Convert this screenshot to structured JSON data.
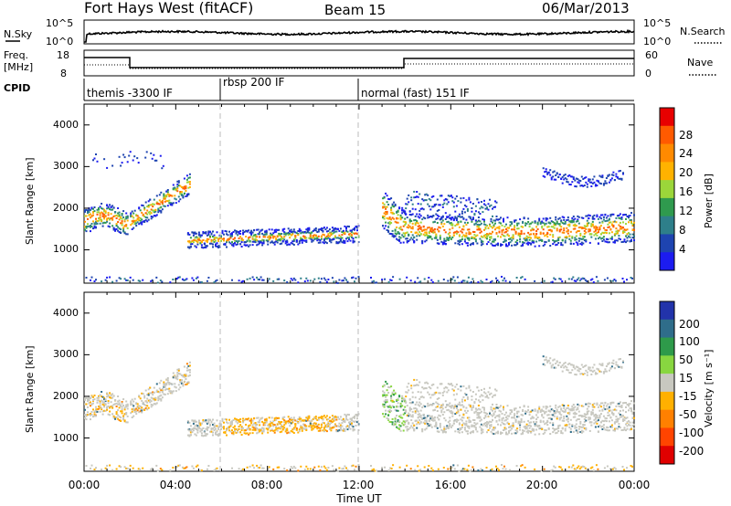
{
  "header": {
    "title": "Fort Hays West (fitACF)",
    "beam": "Beam 15",
    "date": "06/Mar/2013"
  },
  "noise_panel": {
    "left_label": "N.Sky",
    "left_ticks": [
      "10^5",
      "10^0"
    ],
    "right_label": "N.Search",
    "right_ticks": [
      "10^5",
      "10^0"
    ]
  },
  "freq_panel": {
    "left_label_line1": "Freq.",
    "left_label_line2": "[MHz]",
    "left_ticks": [
      "18",
      "8"
    ],
    "right_label": "Nave",
    "right_ticks": [
      "60",
      "0"
    ]
  },
  "cpid_panel": {
    "label": "CPID",
    "segments": [
      {
        "start": 0.0,
        "end": 6.0,
        "text": "themis -3300 IF"
      },
      {
        "start": 6.0,
        "end": 12.0,
        "text": "rbsp 200 IF"
      },
      {
        "start": 12.0,
        "end": 24.0,
        "text": "normal (fast) 151 IF"
      }
    ]
  },
  "chart_data": [
    {
      "type": "heatmap",
      "name": "power",
      "ylabel": "Slant Range [km]",
      "yticks": [
        "1000",
        "2000",
        "3000",
        "4000"
      ],
      "ylim": [
        200,
        4500
      ],
      "xlim": [
        0,
        24
      ],
      "colorbar": {
        "label": "Power [dB]",
        "ticks": [
          "4",
          "8",
          "12",
          "16",
          "20",
          "24",
          "28"
        ],
        "colors": [
          "#1c1cf0",
          "#1e44b0",
          "#2e7f8a",
          "#2f9a4e",
          "#9bd63a",
          "#ffb200",
          "#ff8a00",
          "#ff5a00",
          "#e80000"
        ]
      }
    },
    {
      "type": "heatmap",
      "name": "velocity",
      "ylabel": "Slant Range [km]",
      "yticks": [
        "1000",
        "2000",
        "3000",
        "4000"
      ],
      "ylim": [
        200,
        4500
      ],
      "xlim": [
        0,
        24
      ],
      "colorbar": {
        "label": "Velocity [m s⁻¹]",
        "ticks": [
          "200",
          "100",
          "50",
          "15",
          "-15",
          "-50",
          "-100",
          "-200"
        ],
        "colors": [
          "#2233aa",
          "#2f6d8a",
          "#2e9a4a",
          "#88d640",
          "#c8c8c0",
          "#ffb000",
          "#ff8000",
          "#ff4400",
          "#e00000"
        ]
      }
    }
  ],
  "x_axis": {
    "label": "Time UT",
    "ticks": [
      "00:00",
      "04:00",
      "08:00",
      "12:00",
      "16:00",
      "20:00",
      "00:00"
    ]
  }
}
